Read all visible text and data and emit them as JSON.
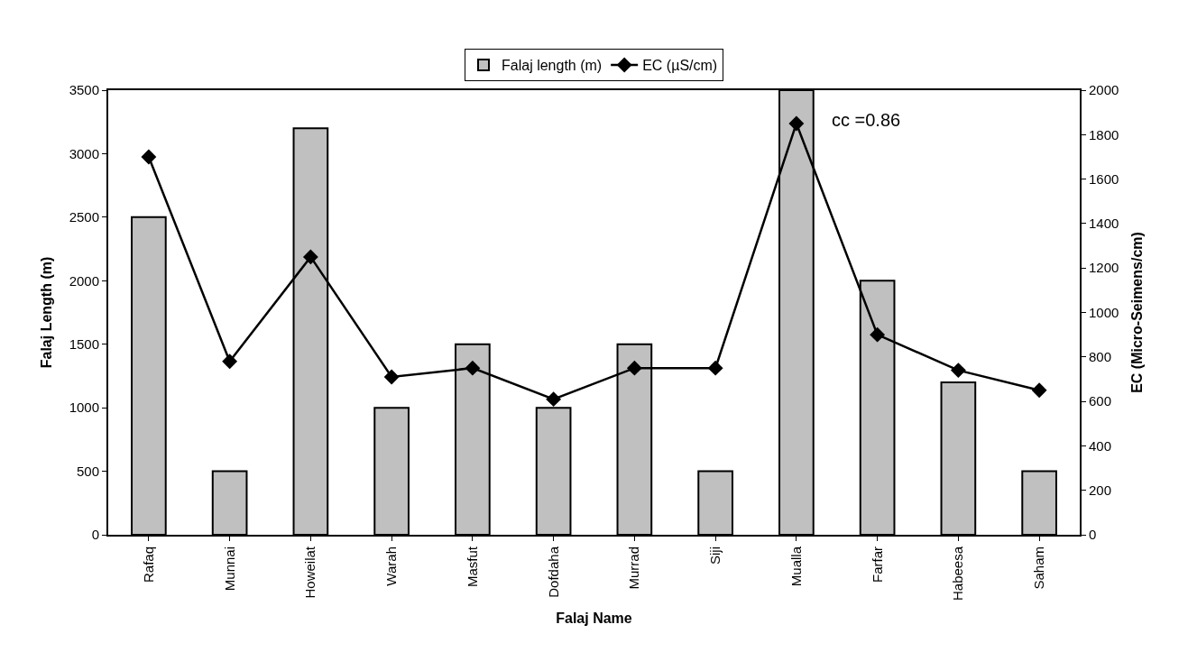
{
  "chart_data": {
    "type": "bar",
    "xlabel": "Falaj Name",
    "ylabel": "Falaj Length (m)",
    "y2label": "EC (Micro-Seimens/cm)",
    "categories": [
      "Rafaq",
      "Munnai",
      "Howeilat",
      "Warah",
      "Masfut",
      "Dofdaha",
      "Murrad",
      "Siji",
      "Mualla",
      "Farfar",
      "Habeesa",
      "Saham"
    ],
    "series": [
      {
        "name": "Falaj length (m)",
        "color": "#c0c0c0",
        "values": [
          2500,
          500,
          3200,
          1000,
          1500,
          1000,
          1500,
          500,
          3500,
          2000,
          1200,
          500
        ]
      },
      {
        "name": "EC (µS/cm)",
        "type": "line",
        "axis": "y2",
        "color": "#000000",
        "marker": "diamond",
        "line_style": "solid",
        "values": [
          1700,
          780,
          1250,
          710,
          750,
          610,
          750,
          750,
          1850,
          900,
          740,
          650
        ]
      }
    ],
    "ylim": [
      0,
      3500
    ],
    "yticks": [
      0,
      500,
      1000,
      1500,
      2000,
      2500,
      3000,
      3500
    ],
    "y2lim": [
      0,
      2000
    ],
    "y2ticks": [
      0,
      200,
      400,
      600,
      800,
      1000,
      1200,
      1400,
      1600,
      1800,
      2000
    ],
    "legend": "top",
    "annotations": [
      "cc =0.86"
    ]
  }
}
